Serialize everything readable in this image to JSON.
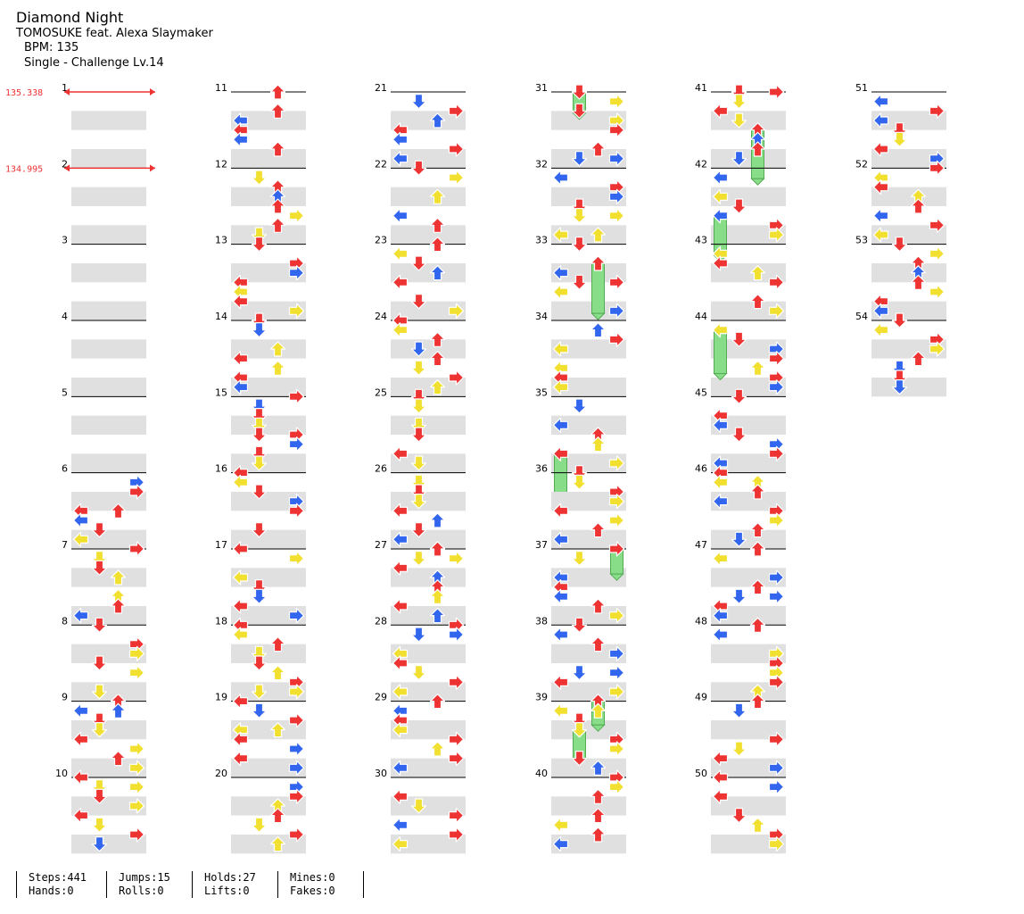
{
  "song": {
    "title": "Diamond Night",
    "artist": "TOMOSUKE feat. Alexa Slaymaker",
    "bpm": "BPM: 135",
    "difficulty": "Single - Challenge Lv.14"
  },
  "bpm_changes": [
    {
      "measure": 1,
      "label": "135.338"
    },
    {
      "measure": 2,
      "label": "134.995"
    }
  ],
  "colors": {
    "red_arrow": "#ee3333",
    "blue_arrow": "#3366ee",
    "yellow_arrow": "#f2e030",
    "purple_arrow": "#a040e0",
    "hold_body": "#88dd88",
    "lane_shade": "#e0e0e0",
    "bpm_line": "#ee3333"
  },
  "icons": [
    "left-arrow-icon",
    "down-arrow-icon",
    "up-arrow-icon",
    "right-arrow-icon",
    "hold-bar"
  ],
  "measure_count": 54,
  "stats": [
    {
      "key": "steps",
      "text": "Steps:441"
    },
    {
      "key": "hands",
      "text": "Hands:0"
    },
    {
      "key": "jumps",
      "text": "Jumps:15"
    },
    {
      "key": "rolls",
      "text": "Rolls:0"
    },
    {
      "key": "holds",
      "text": "Holds:27"
    },
    {
      "key": "lifts",
      "text": "Lifts:0"
    },
    {
      "key": "mines",
      "text": "Mines:0"
    },
    {
      "key": "fakes",
      "text": "Fakes:0"
    }
  ]
}
